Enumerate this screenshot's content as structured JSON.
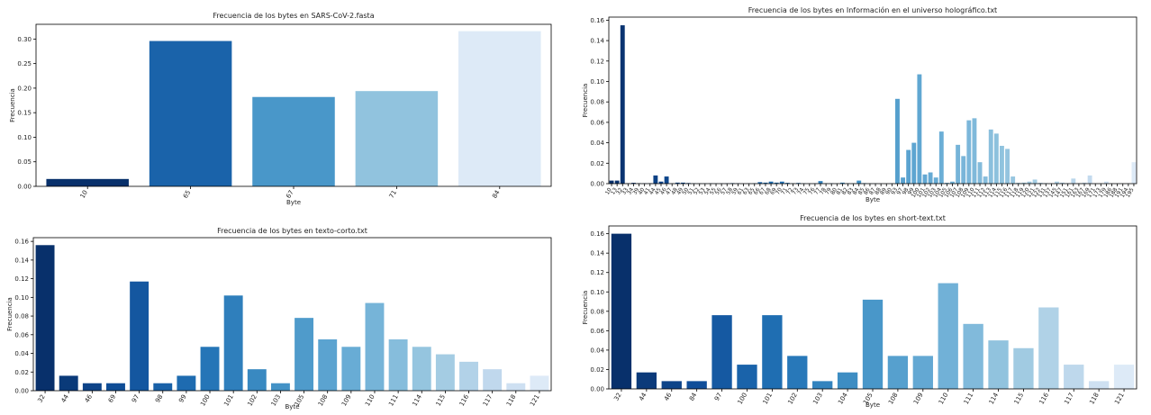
{
  "chart_data": [
    {
      "type": "bar",
      "title": "Frecuencia de los bytes en SARS-CoV-2.fasta",
      "xlabel": "Byte",
      "ylabel": "Frecuencia",
      "categories": [
        "10",
        "65",
        "67",
        "71",
        "84"
      ],
      "values": [
        0.015,
        0.296,
        0.182,
        0.194,
        0.316
      ],
      "ylim": [
        0,
        0.33
      ],
      "yticks": [
        0,
        0.05,
        0.1,
        0.15,
        0.2,
        0.25,
        0.3
      ],
      "ytick_labels": [
        "0.00",
        "0.05",
        "0.10",
        "0.15",
        "0.20",
        "0.25",
        "0.30"
      ],
      "palette": "Blues_r",
      "grid": false
    },
    {
      "type": "bar",
      "title": "Frecuencia de los bytes en Información en el universo holográfico.txt",
      "xlabel": "Byte",
      "ylabel": "Frecuencia",
      "categories": [
        "10",
        "13",
        "32",
        "33",
        "34",
        "39",
        "40",
        "41",
        "44",
        "45",
        "46",
        "47",
        "48",
        "49",
        "50",
        "51",
        "52",
        "53",
        "54",
        "55",
        "56",
        "57",
        "58",
        "59",
        "61",
        "63",
        "65",
        "66",
        "67",
        "68",
        "69",
        "70",
        "71",
        "72",
        "73",
        "74",
        "75",
        "76",
        "77",
        "78",
        "79",
        "80",
        "81",
        "82",
        "83",
        "84",
        "85",
        "86",
        "87",
        "88",
        "89",
        "90",
        "93",
        "97",
        "98",
        "99",
        "100",
        "101",
        "102",
        "103",
        "104",
        "105",
        "106",
        "107",
        "108",
        "109",
        "110",
        "111",
        "112",
        "113",
        "114",
        "115",
        "116",
        "117",
        "118",
        "119",
        "120",
        "121",
        "122",
        "131",
        "137",
        "145",
        "147",
        "151",
        "161",
        "163",
        "167",
        "169",
        "171",
        "173",
        "179",
        "186",
        "188",
        "191",
        "194",
        "195"
      ],
      "values": [
        0.003,
        0.003,
        0.155,
        0.0003,
        0.0008,
        0.0004,
        0.0004,
        0.0004,
        0.008,
        0.002,
        0.007,
        0.0002,
        0.001,
        0.001,
        0.0006,
        0.0003,
        0.0002,
        0.0002,
        0.0003,
        0.0002,
        0.0002,
        0.0003,
        0.0005,
        0.0003,
        0.0001,
        0.0002,
        0.0004,
        0.0015,
        0.001,
        0.002,
        0.001,
        0.002,
        0.0008,
        0.0003,
        0.0007,
        0.0003,
        0.0002,
        0.0003,
        0.0025,
        0.0003,
        0.0004,
        0.0002,
        0.001,
        0.0003,
        0.0003,
        0.003,
        0.0005,
        0.0002,
        0.0002,
        0.0001,
        0.0001,
        0.0002,
        0.083,
        0.006,
        0.033,
        0.04,
        0.107,
        0.009,
        0.011,
        0.006,
        0.051,
        0.0008,
        0.002,
        0.038,
        0.027,
        0.062,
        0.064,
        0.021,
        0.007,
        0.053,
        0.049,
        0.037,
        0.034,
        0.007,
        0.0008,
        0.001,
        0.002,
        0.004,
        0.0008,
        0.0005,
        0.0003,
        0.002,
        0.001,
        0.0005,
        0.005,
        0.0005,
        0.001,
        0.008,
        0.0004,
        0.0003,
        0.002,
        0.0003,
        0.0003,
        0.0001,
        0.0004,
        0.021
      ],
      "ylim": [
        0,
        0.163
      ],
      "yticks": [
        0,
        0.02,
        0.04,
        0.06,
        0.08,
        0.1,
        0.12,
        0.14,
        0.16
      ],
      "ytick_labels": [
        "0.00",
        "0.02",
        "0.04",
        "0.06",
        "0.08",
        "0.10",
        "0.12",
        "0.14",
        "0.16"
      ],
      "palette": "Blues_r",
      "grid": false
    },
    {
      "type": "bar",
      "title": "Frecuencia de los bytes en texto-corto.txt",
      "xlabel": "Byte",
      "ylabel": "Frecuencia",
      "categories": [
        "32",
        "44",
        "46",
        "69",
        "97",
        "98",
        "99",
        "100",
        "101",
        "102",
        "103",
        "105",
        "108",
        "109",
        "110",
        "111",
        "114",
        "115",
        "116",
        "117",
        "118",
        "121"
      ],
      "values": [
        0.156,
        0.016,
        0.008,
        0.008,
        0.117,
        0.008,
        0.016,
        0.047,
        0.102,
        0.023,
        0.008,
        0.078,
        0.055,
        0.047,
        0.094,
        0.055,
        0.047,
        0.039,
        0.031,
        0.023,
        0.008,
        0.016
      ],
      "ylim": [
        0,
        0.164
      ],
      "yticks": [
        0,
        0.02,
        0.04,
        0.06,
        0.08,
        0.1,
        0.12,
        0.14,
        0.16
      ],
      "ytick_labels": [
        "0.00",
        "0.02",
        "0.04",
        "0.06",
        "0.08",
        "0.10",
        "0.12",
        "0.14",
        "0.16"
      ],
      "palette": "Blues_r",
      "grid": false
    },
    {
      "type": "bar",
      "title": "Frecuencia de los bytes en short-text.txt",
      "xlabel": "Byte",
      "ylabel": "Frecuencia",
      "categories": [
        "32",
        "44",
        "46",
        "84",
        "97",
        "100",
        "101",
        "102",
        "103",
        "104",
        "105",
        "108",
        "109",
        "110",
        "111",
        "114",
        "115",
        "116",
        "117",
        "118",
        "121"
      ],
      "values": [
        0.16,
        0.017,
        0.008,
        0.008,
        0.076,
        0.025,
        0.076,
        0.034,
        0.008,
        0.017,
        0.092,
        0.034,
        0.034,
        0.109,
        0.067,
        0.05,
        0.042,
        0.084,
        0.025,
        0.008,
        0.025
      ],
      "ylim": [
        0,
        0.168
      ],
      "yticks": [
        0,
        0.02,
        0.04,
        0.06,
        0.08,
        0.1,
        0.12,
        0.14,
        0.16
      ],
      "ytick_labels": [
        "0.00",
        "0.02",
        "0.04",
        "0.06",
        "0.08",
        "0.10",
        "0.12",
        "0.14",
        "0.16"
      ],
      "palette": "Blues_r",
      "grid": false
    }
  ]
}
